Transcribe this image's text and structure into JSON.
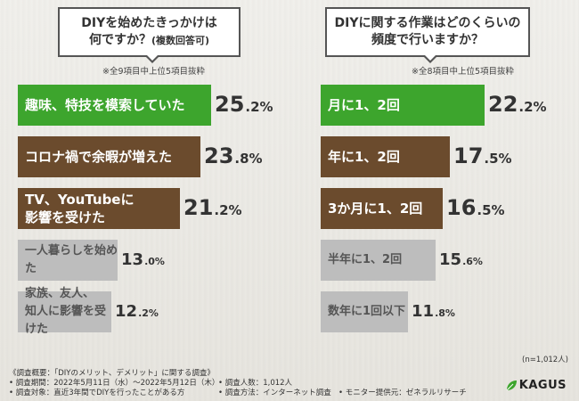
{
  "colors": {
    "green": "#3da52d",
    "brown": "#6b4b2d",
    "gray": "#bdbdbd"
  },
  "left": {
    "question_line1": "DIYを始めたきっかけは",
    "question_line2": "何ですか？",
    "question_suffix": "(複数回答可)",
    "note": "※全9項目中上位5項目抜粋"
  },
  "right": {
    "question_line1": "DIYに関する作業はどのくらいの",
    "question_line2": "頻度で行いますか？",
    "note": "※全8項目中上位5項目抜粋"
  },
  "chart_data": [
    {
      "type": "bar",
      "orientation": "horizontal",
      "title": "DIYを始めたきっかけは何ですか？(複数回答可)",
      "categories": [
        "趣味、特技を模索していた",
        "コロナ禍で余暇が増えた",
        "TV、YouTubeに\n影響を受けた",
        "一人暮らしを始めた",
        "家族、友人、\n知人に影響を受けた"
      ],
      "values": [
        25.2,
        23.8,
        21.2,
        13.0,
        12.2
      ],
      "value_labels": [
        {
          "num": "25",
          "pct": ".2%"
        },
        {
          "num": "23",
          "pct": ".8%"
        },
        {
          "num": "21",
          "pct": ".2%"
        },
        {
          "num": "13",
          "pct": ".0%"
        },
        {
          "num": "12",
          "pct": ".2%"
        }
      ],
      "unit": "%"
    },
    {
      "type": "bar",
      "orientation": "horizontal",
      "title": "DIYに関する作業はどのくらいの頻度で行いますか？",
      "categories": [
        "月に1、2回",
        "年に1、2回",
        "3か月に1、2回",
        "半年に1、2回",
        "数年に1回以下"
      ],
      "values": [
        22.2,
        17.5,
        16.5,
        15.6,
        11.8
      ],
      "value_labels": [
        {
          "num": "22",
          "pct": ".2%"
        },
        {
          "num": "17",
          "pct": ".5%"
        },
        {
          "num": "16",
          "pct": ".5%"
        },
        {
          "num": "15",
          "pct": ".6%"
        },
        {
          "num": "11",
          "pct": ".8%"
        }
      ],
      "unit": "%"
    }
  ],
  "n_note": "(n=1,012人)",
  "footer": {
    "line1": "《調査概要：「DIYのメリット、デメリット」に関する調査》",
    "period": "• 調査期間：2022年5月11日（水）～2022年5月12日（木）",
    "target": "• 調査対象：直近3年間でDIYを行ったことがある方",
    "count": "• 調査人数：1,012人",
    "method": "• 調査方法：インターネット調査",
    "provider": "• モニター提供元：ゼネラルリサーチ"
  },
  "logo": {
    "text": "KAGUS"
  }
}
